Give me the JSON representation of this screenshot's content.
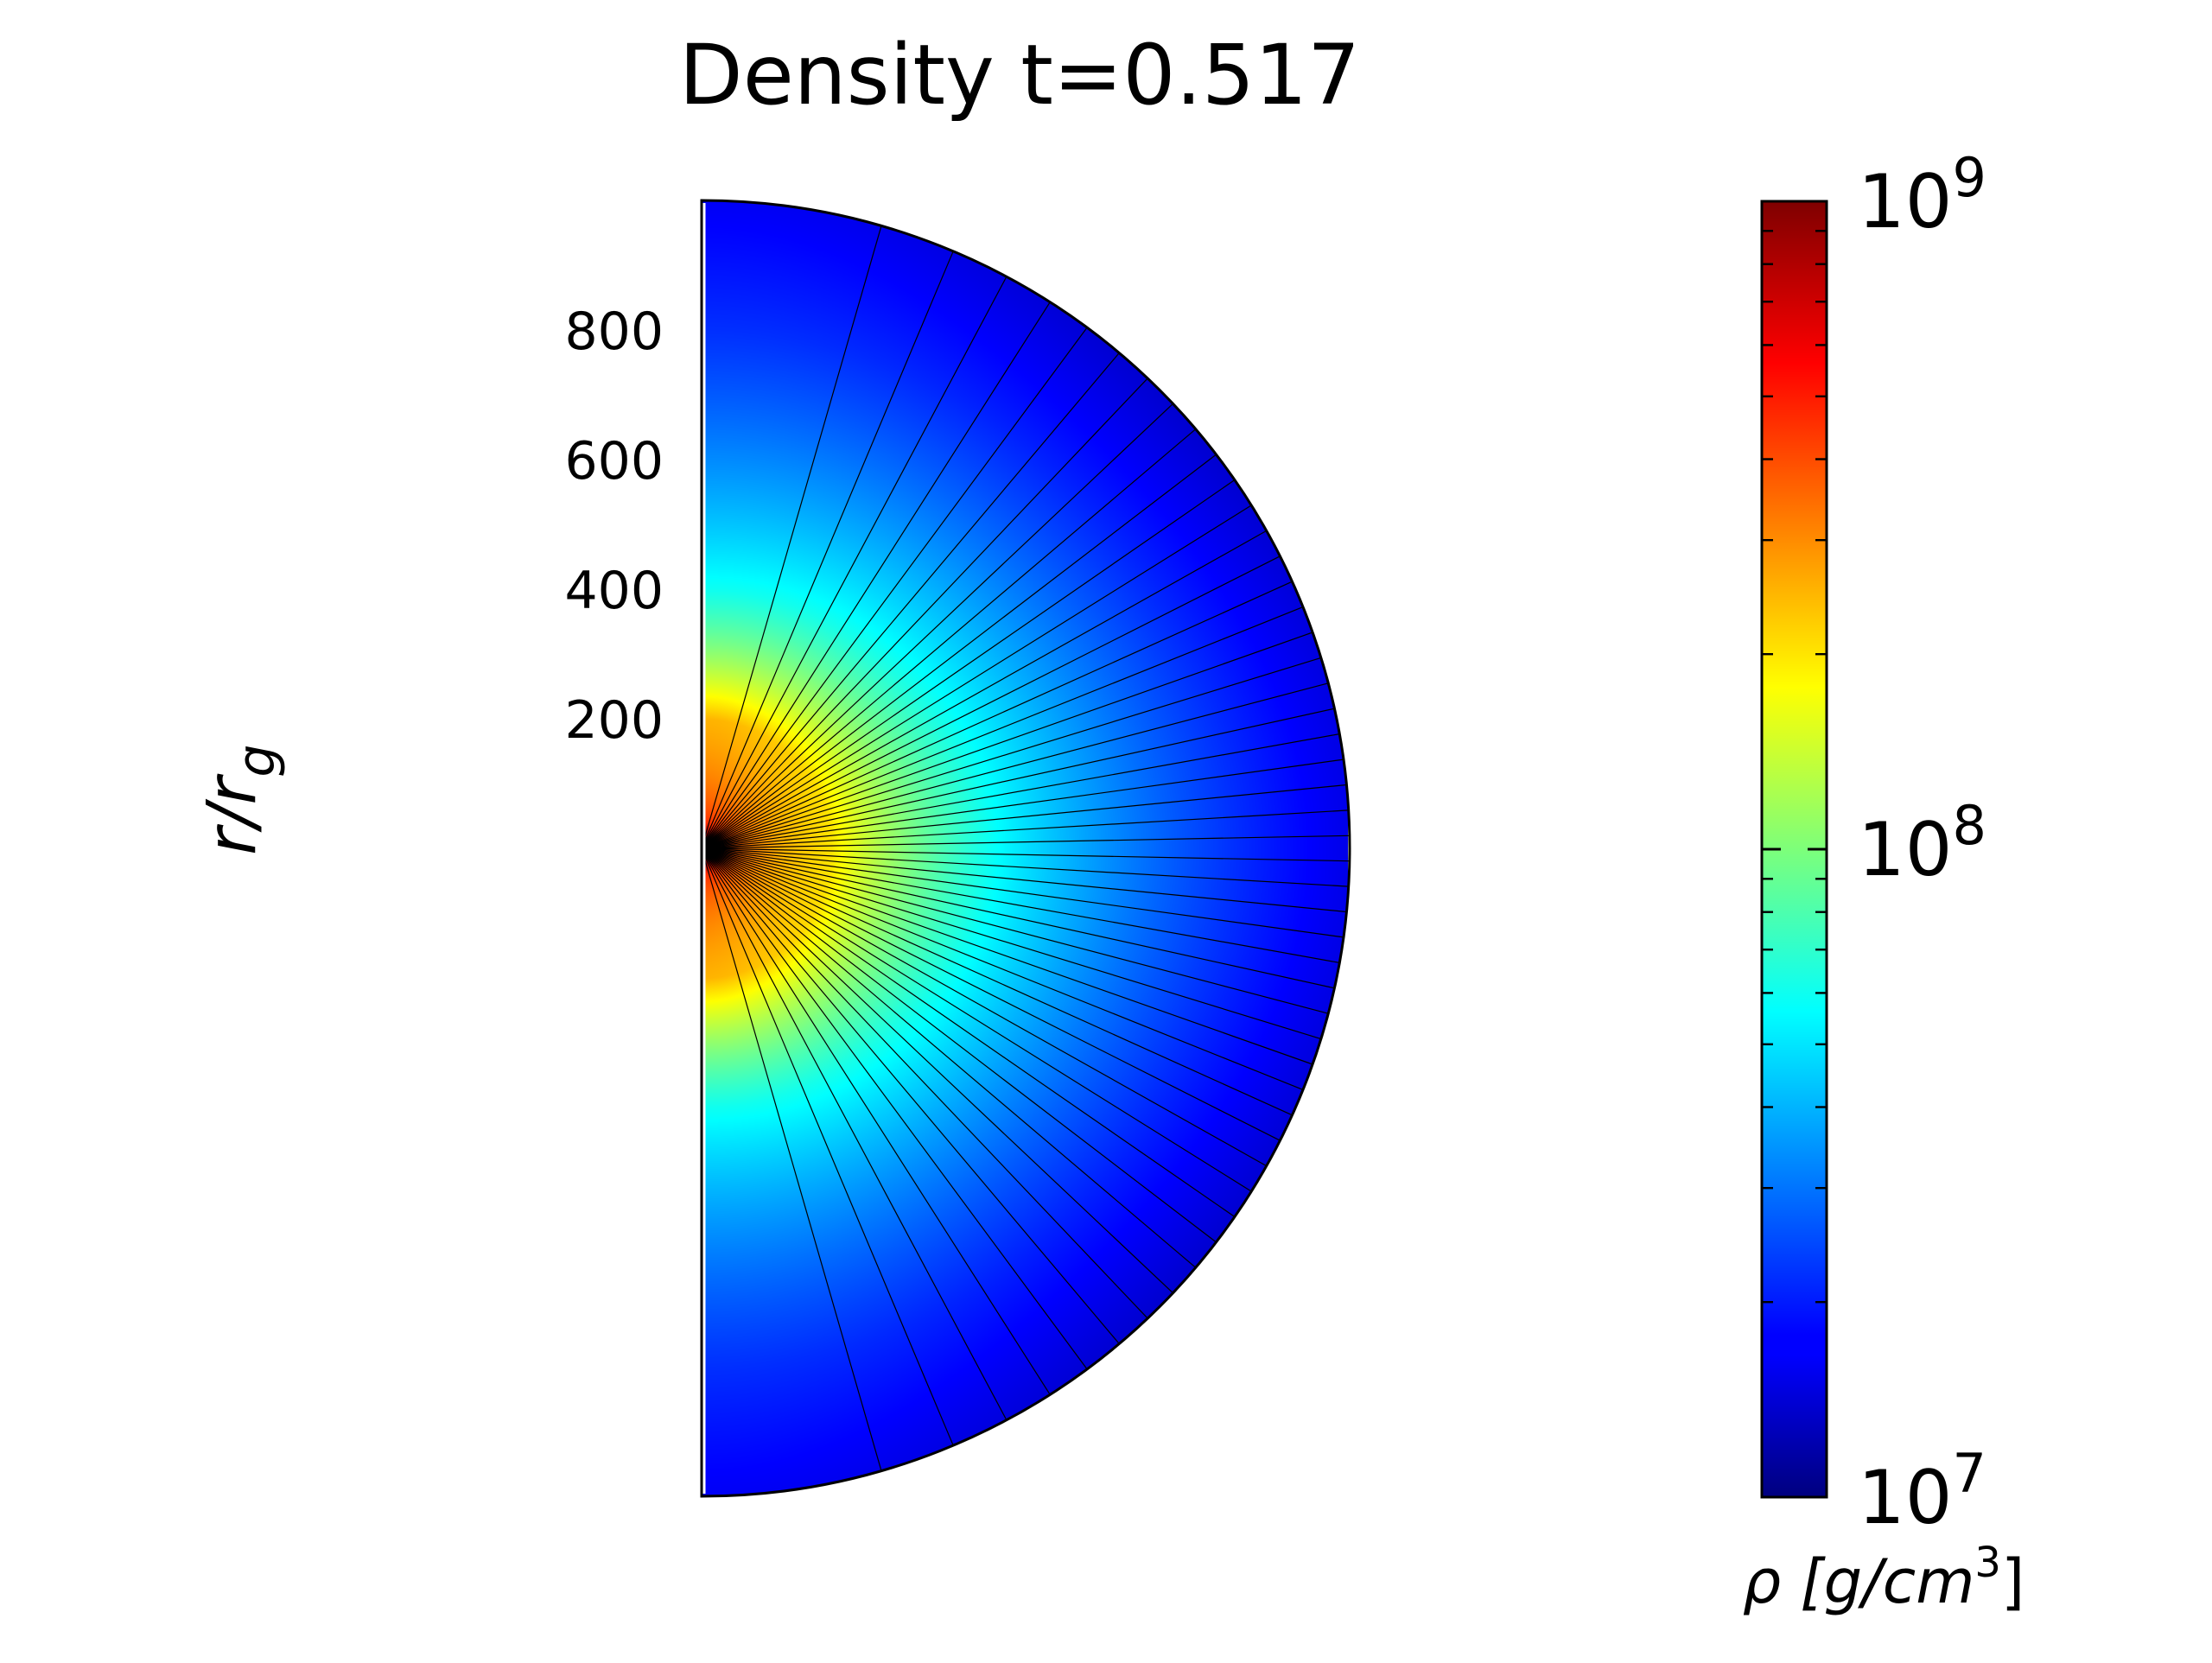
{
  "chart_data": {
    "type": "heatmap",
    "projection": "polar-half-disc",
    "title": "Density t=0.517",
    "ylabel_main": "r/r",
    "ylabel_sub": "g",
    "r_range": [
      0,
      1000
    ],
    "r_ticks": [
      {
        "value": 200,
        "label": "200"
      },
      {
        "value": 400,
        "label": "400"
      },
      {
        "value": 600,
        "label": "600"
      },
      {
        "value": 800,
        "label": "800"
      }
    ],
    "theta_range_deg": [
      0,
      180
    ],
    "grid_lines": 51,
    "colormap": "jet",
    "colorbar": {
      "scale": "log",
      "range": [
        10000000,
        1000000000
      ],
      "major_ticks": [
        {
          "value": 10000000,
          "base": "10",
          "exp": "7"
        },
        {
          "value": 100000000,
          "base": "10",
          "exp": "8"
        },
        {
          "value": 1000000000,
          "base": "10",
          "exp": "9"
        }
      ],
      "label_main": "ρ [g/cm",
      "label_exp": "3",
      "label_close": "]"
    },
    "density_model": {
      "description_units": "g/cm^3",
      "center_value": 1000000000,
      "inner_value_at_r20": 600000000,
      "pole_value_at_r200": 250000000,
      "pole_value_at_r400": 60000000,
      "pole_value_at_r800": 22000000,
      "equator_value_at_r200": 200000000,
      "equator_value_at_r400": 70000000,
      "equator_value_at_r1000": 16000000,
      "edge_value_at_45deg": 14000000
    }
  }
}
